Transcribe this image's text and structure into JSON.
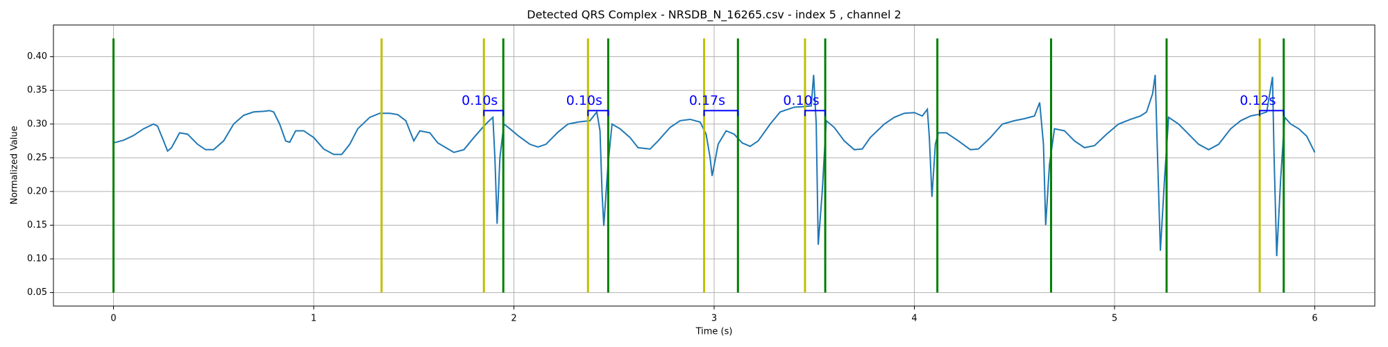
{
  "chart_data": {
    "type": "line",
    "title": "Detected QRS Complex - NRSDB_N_16265.csv - index 5 , channel 2",
    "xlabel": "Time (s)",
    "ylabel": "Normalized Value",
    "xlim": [
      -0.3,
      6.3
    ],
    "ylim": [
      0.03,
      0.447
    ],
    "xticks": [
      0,
      1,
      2,
      3,
      4,
      5,
      6
    ],
    "yticks": [
      0.05,
      {
        "value": 0.1,
        "label": "0.10"
      },
      0.15,
      {
        "value": 0.2,
        "label": "0.20"
      },
      0.25,
      {
        "value": 0.3,
        "label": "0.30"
      },
      0.35,
      {
        "value": 0.4,
        "label": "0.40"
      }
    ],
    "grid": true,
    "x": [
      0,
      0.05,
      0.1,
      0.15,
      0.2,
      0.22,
      0.25,
      0.27,
      0.29,
      0.33,
      0.37,
      0.42,
      0.46,
      0.5,
      0.55,
      0.6,
      0.65,
      0.7,
      0.75,
      0.78,
      0.8,
      0.83,
      0.86,
      0.88,
      0.91,
      0.95,
      1.0,
      1.05,
      1.1,
      1.14,
      1.18,
      1.22,
      1.28,
      1.33,
      1.38,
      1.42,
      1.46,
      1.5,
      1.53,
      1.58,
      1.62,
      1.66,
      1.7,
      1.75,
      1.8,
      1.85,
      1.88,
      1.895,
      1.905,
      1.916,
      1.93,
      1.95,
      1.98,
      2.02,
      2.08,
      2.12,
      2.16,
      2.22,
      2.27,
      2.32,
      2.38,
      2.414,
      2.43,
      2.44,
      2.449,
      2.47,
      2.49,
      2.53,
      2.58,
      2.62,
      2.68,
      2.72,
      2.78,
      2.83,
      2.88,
      2.93,
      2.96,
      2.98,
      2.99,
      3.02,
      3.06,
      3.1,
      3.14,
      3.18,
      3.22,
      3.28,
      3.33,
      3.4,
      3.45,
      3.485,
      3.497,
      3.51,
      3.52,
      3.54,
      3.56,
      3.6,
      3.65,
      3.7,
      3.74,
      3.78,
      3.85,
      3.9,
      3.95,
      4.0,
      4.04,
      4.065,
      4.075,
      4.088,
      4.105,
      4.12,
      4.16,
      4.22,
      4.28,
      4.32,
      4.38,
      4.44,
      4.5,
      4.55,
      4.6,
      4.626,
      4.645,
      4.656,
      4.675,
      4.7,
      4.75,
      4.8,
      4.85,
      4.9,
      4.96,
      5.02,
      5.08,
      5.13,
      5.16,
      5.19,
      5.203,
      5.215,
      5.229,
      5.25,
      5.27,
      5.32,
      5.37,
      5.42,
      5.47,
      5.52,
      5.58,
      5.63,
      5.68,
      5.73,
      5.76,
      5.789,
      5.797,
      5.81,
      5.83,
      5.85,
      5.88,
      5.92,
      5.96,
      6.0
    ],
    "series": [
      {
        "color": "#1f77b4",
        "values": [
          0.272,
          0.276,
          0.283,
          0.293,
          0.3,
          0.297,
          0.275,
          0.26,
          0.265,
          0.287,
          0.285,
          0.27,
          0.262,
          0.262,
          0.275,
          0.3,
          0.313,
          0.318,
          0.319,
          0.32,
          0.318,
          0.3,
          0.275,
          0.273,
          0.29,
          0.29,
          0.28,
          0.263,
          0.255,
          0.255,
          0.27,
          0.293,
          0.31,
          0.316,
          0.316,
          0.314,
          0.305,
          0.275,
          0.29,
          0.287,
          0.272,
          0.265,
          0.258,
          0.262,
          0.28,
          0.297,
          0.306,
          0.31,
          0.25,
          0.152,
          0.25,
          0.3,
          0.293,
          0.283,
          0.27,
          0.266,
          0.27,
          0.288,
          0.3,
          0.303,
          0.305,
          0.318,
          0.29,
          0.2,
          0.149,
          0.24,
          0.3,
          0.293,
          0.28,
          0.265,
          0.263,
          0.275,
          0.295,
          0.305,
          0.307,
          0.303,
          0.285,
          0.25,
          0.223,
          0.27,
          0.29,
          0.285,
          0.272,
          0.267,
          0.275,
          0.3,
          0.318,
          0.325,
          0.326,
          0.327,
          0.373,
          0.3,
          0.121,
          0.2,
          0.305,
          0.295,
          0.275,
          0.262,
          0.263,
          0.28,
          0.3,
          0.31,
          0.316,
          0.317,
          0.312,
          0.322,
          0.28,
          0.192,
          0.27,
          0.287,
          0.287,
          0.275,
          0.262,
          0.263,
          0.28,
          0.3,
          0.305,
          0.308,
          0.312,
          0.332,
          0.27,
          0.15,
          0.24,
          0.293,
          0.29,
          0.275,
          0.265,
          0.268,
          0.285,
          0.3,
          0.307,
          0.312,
          0.318,
          0.345,
          0.373,
          0.25,
          0.112,
          0.22,
          0.31,
          0.3,
          0.285,
          0.27,
          0.262,
          0.27,
          0.293,
          0.305,
          0.312,
          0.315,
          0.318,
          0.37,
          0.25,
          0.104,
          0.22,
          0.31,
          0.3,
          0.293,
          0.282,
          0.258
        ]
      }
    ],
    "vline_ymin": 0.05,
    "vline_ymax": 0.427,
    "vlines": [
      {
        "color": "#bfbf00",
        "x": [
          1.339,
          1.85,
          2.37,
          2.95,
          3.454,
          5.725
        ]
      },
      {
        "color": "#008000",
        "x": [
          0,
          1.947,
          2.471,
          3.119,
          3.555,
          4.115,
          4.683,
          5.26,
          5.845
        ]
      }
    ],
    "interval_color": "#0000ff",
    "intervals": [
      {
        "start": 1.85,
        "end": 1.947,
        "y": 0.32,
        "label": "0.10s"
      },
      {
        "start": 2.37,
        "end": 2.471,
        "y": 0.32,
        "label": "0.10s"
      },
      {
        "start": 2.95,
        "end": 3.119,
        "y": 0.32,
        "label": "0.17s"
      },
      {
        "start": 3.454,
        "end": 3.555,
        "y": 0.32,
        "label": "0.10s"
      },
      {
        "start": 5.725,
        "end": 5.845,
        "y": 0.32,
        "label": "0.12s"
      }
    ]
  }
}
